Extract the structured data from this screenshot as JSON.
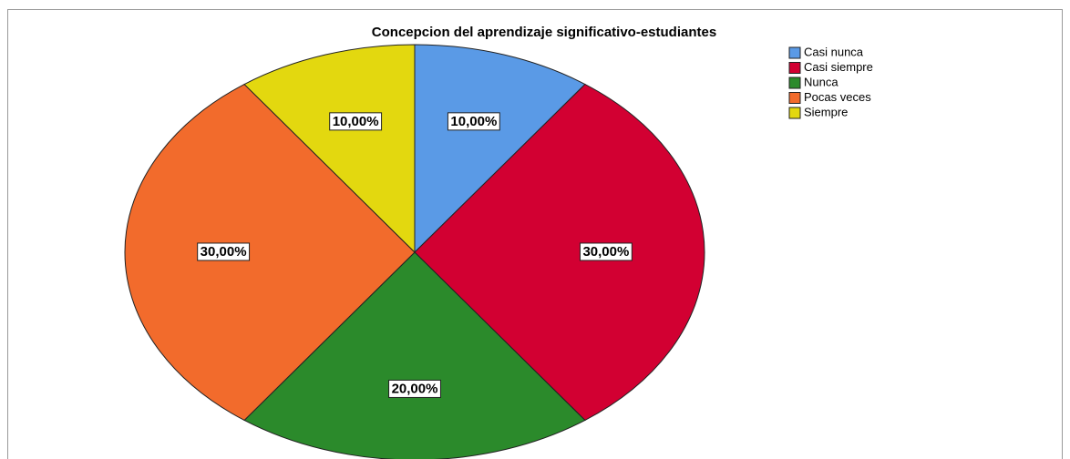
{
  "chart_data": {
    "type": "pie",
    "title": "Concepcion del aprendizaje significativo-estudiantes",
    "categories": [
      "Casi nunca",
      "Casi siempre",
      "Nunca",
      "Pocas veces",
      "Siempre"
    ],
    "values": [
      10,
      30,
      20,
      30,
      10
    ],
    "value_labels": [
      "10,00%",
      "30,00%",
      "20,00%",
      "30,00%",
      "10,00%"
    ],
    "colors": [
      "#5a9ae6",
      "#d20032",
      "#2b8a2b",
      "#f26b2c",
      "#e3d80f"
    ],
    "legend": "top-right"
  }
}
